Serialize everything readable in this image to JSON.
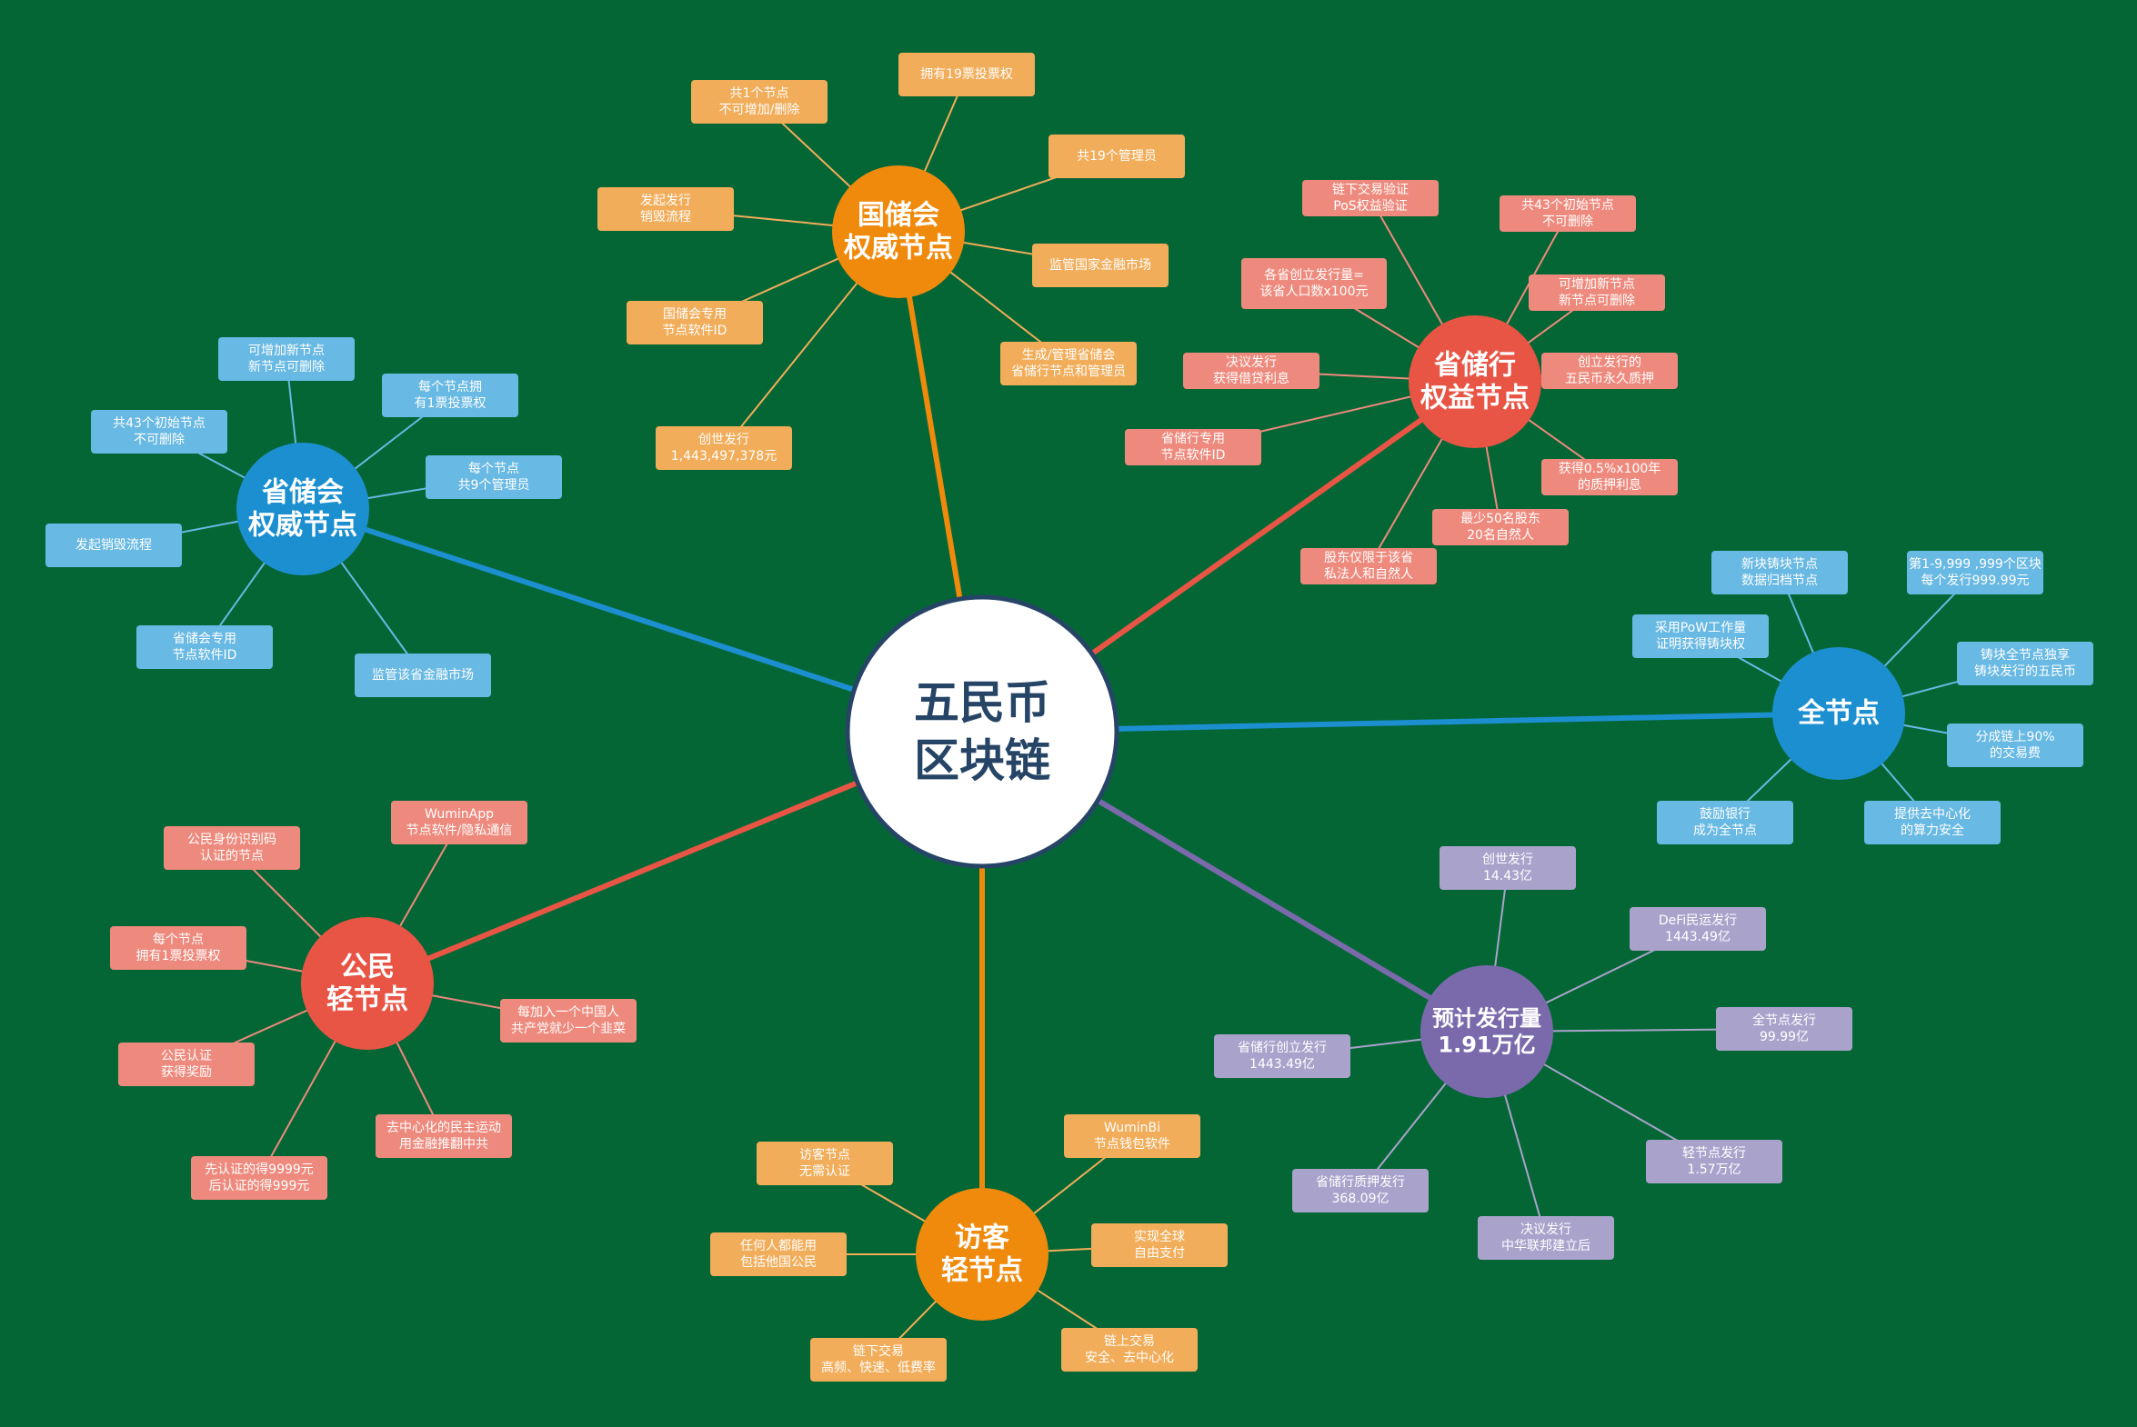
{
  "center": {
    "lines": [
      "五民币",
      "区块链"
    ]
  },
  "branches": [
    {
      "id": "national-council",
      "title": [
        "国储会",
        "权威节点"
      ],
      "color": "#f08a0c",
      "leaf_color": "#f2ad5a",
      "items": [
        [
          "共1个节点",
          "不可增加/删除"
        ],
        [
          "拥有19票投票权"
        ],
        [
          "共19个管理员"
        ],
        [
          "发起发行",
          "销毁流程"
        ],
        [
          "监管国家金融市场"
        ],
        [
          "国储会专用",
          "节点软件ID"
        ],
        [
          "生成/管理省储会",
          "省储行节点和管理员"
        ],
        [
          "创世发行",
          "1,443,497,378元"
        ]
      ]
    },
    {
      "id": "provincial-bank",
      "title": [
        "省储行",
        "权益节点"
      ],
      "color": "#e85545",
      "leaf_color": "#ee8a7d",
      "items": [
        [
          "链下交易验证",
          "PoS权益验证"
        ],
        [
          "共43个初始节点",
          "不可删除"
        ],
        [
          "各省创立发行量=",
          "该省人口数x100元"
        ],
        [
          "可增加新节点",
          "新节点可删除"
        ],
        [
          "决议发行",
          "获得借贷利息"
        ],
        [
          "创立发行的",
          "五民币永久质押"
        ],
        [
          "省储行专用",
          "节点软件ID"
        ],
        [
          "获得0.5%x100年",
          "的质押利息"
        ],
        [
          "最少50名股东",
          "20名自然人"
        ],
        [
          "股东仅限于该省",
          "私法人和自然人"
        ]
      ]
    },
    {
      "id": "provincial-council",
      "title": [
        "省储会",
        "权威节点"
      ],
      "color": "#1c8fd0",
      "leaf_color": "#68b9e3",
      "items": [
        [
          "可增加新节点",
          "新节点可删除"
        ],
        [
          "每个节点拥",
          "有1票投票权"
        ],
        [
          "共43个初始节点",
          "不可删除"
        ],
        [
          "每个节点",
          "共9个管理员"
        ],
        [
          "发起销毁流程"
        ],
        [
          "省储会专用",
          "节点软件ID"
        ],
        [
          "监管该省金融市场"
        ]
      ]
    },
    {
      "id": "full-node",
      "title": [
        "全节点"
      ],
      "color": "#1c8fd0",
      "leaf_color": "#68b9e3",
      "items": [
        [
          "新块铸块节点",
          "数据归档节点"
        ],
        [
          "第1-9,999 ,999个区块",
          "每个发行999.99元"
        ],
        [
          "采用PoW工作量",
          "证明获得铸块权"
        ],
        [
          "铸块全节点独享",
          "铸块发行的五民币"
        ],
        [
          "分成链上90%",
          "的交易费"
        ],
        [
          "鼓励银行",
          "成为全节点"
        ],
        [
          "提供去中心化",
          "的算力安全"
        ]
      ]
    },
    {
      "id": "citizen-light",
      "title": [
        "公民",
        "轻节点"
      ],
      "color": "#e85545",
      "leaf_color": "#ee8a7d",
      "items": [
        [
          "公民身份识别码",
          "认证的节点"
        ],
        [
          "WuminApp",
          "节点软件/隐私通信"
        ],
        [
          "每个节点",
          "拥有1票投票权"
        ],
        [
          "每加入一个中国人",
          "共产党就少一个韭菜"
        ],
        [
          "公民认证",
          "获得奖励"
        ],
        [
          "去中心化的民主运动",
          "用金融推翻中共"
        ],
        [
          "先认证的得9999元",
          "后认证的得999元"
        ]
      ]
    },
    {
      "id": "visitor-light",
      "title": [
        "访客",
        "轻节点"
      ],
      "color": "#f08a0c",
      "leaf_color": "#f2ad5a",
      "items": [
        [
          "访客节点",
          "无需认证"
        ],
        [
          "WuminBi",
          "节点钱包软件"
        ],
        [
          "任何人都能用",
          "包括他国公民"
        ],
        [
          "实现全球",
          "自由支付"
        ],
        [
          "链下交易",
          "高频、快速、低费率"
        ],
        [
          "链上交易",
          "安全、去中心化"
        ]
      ]
    },
    {
      "id": "issuance",
      "title": [
        "预计发行量",
        "1.91万亿"
      ],
      "color": "#7a6aac",
      "leaf_color": "#a9a3cc",
      "items": [
        [
          "创世发行",
          "14.43亿"
        ],
        [
          "DeFi民运发行",
          "1443.49亿"
        ],
        [
          "省储行创立发行",
          "1443.49亿"
        ],
        [
          "全节点发行",
          "99.99亿"
        ],
        [
          "省储行质押发行",
          "368.09亿"
        ],
        [
          "轻节点发行",
          "1.57万亿"
        ],
        [
          "决议发行",
          "中华联邦建立后"
        ]
      ]
    }
  ]
}
